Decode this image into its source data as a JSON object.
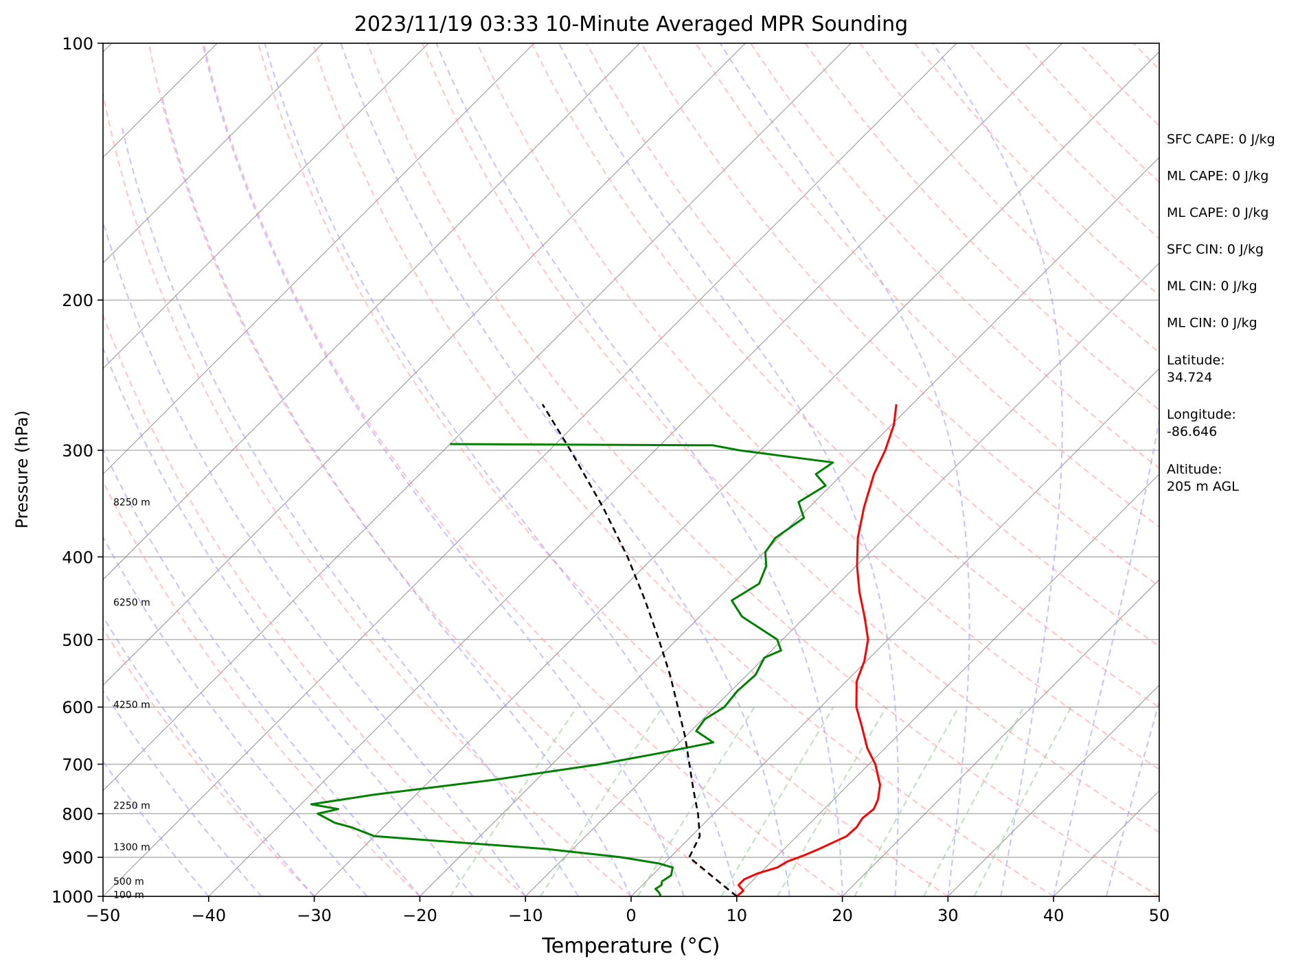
{
  "chart_data": {
    "type": "line",
    "title": "2023/11/19 03:33 10-Minute Averaged MPR Sounding",
    "xlabel": "Temperature (°C)",
    "ylabel": "Pressure (hPa)",
    "xlim": [
      -50,
      50
    ],
    "ylim": [
      1000,
      100
    ],
    "y_scale": "log",
    "skew": true,
    "x_ticks": [
      "−50",
      "−40",
      "−30",
      "−20",
      "−10",
      "0",
      "10",
      "20",
      "30",
      "40",
      "50"
    ],
    "x_tick_values": [
      -50,
      -40,
      -30,
      -20,
      -10,
      0,
      10,
      20,
      30,
      40,
      50
    ],
    "y_ticks": [
      "100",
      "200",
      "300",
      "400",
      "500",
      "600",
      "700",
      "800",
      "900",
      "1000"
    ],
    "y_tick_values": [
      100,
      200,
      300,
      400,
      500,
      600,
      700,
      800,
      900,
      1000
    ],
    "grid": true,
    "colors": {
      "temperature": "#ff0000",
      "dewpoint": "#008000",
      "parcel": "#000000",
      "dry_adiabats": "#ff9999",
      "moist_adiabats": "#9999ff",
      "mixing_ratio": "#99cc99",
      "isotherms": "#808080"
    },
    "height_labels": [
      {
        "text": "8250 m",
        "p": 345
      },
      {
        "text": "6250 m",
        "p": 452
      },
      {
        "text": "4250 m",
        "p": 596
      },
      {
        "text": "2250 m",
        "p": 782
      },
      {
        "text": "1300 m",
        "p": 875
      },
      {
        "text": "500 m",
        "p": 960
      },
      {
        "text": "100 m",
        "p": 995
      }
    ],
    "series": [
      {
        "key": "temperature",
        "points": [
          [
            1000,
            10.0
          ],
          [
            985,
            10.1
          ],
          [
            970,
            9.1
          ],
          [
            955,
            9.1
          ],
          [
            940,
            9.8
          ],
          [
            925,
            11.1
          ],
          [
            910,
            11.5
          ],
          [
            895,
            12.5
          ],
          [
            880,
            13.3
          ],
          [
            865,
            14.0
          ],
          [
            850,
            14.7
          ],
          [
            830,
            14.8
          ],
          [
            810,
            14.5
          ],
          [
            790,
            14.7
          ],
          [
            770,
            14.2
          ],
          [
            740,
            13.0
          ],
          [
            700,
            10.6
          ],
          [
            670,
            8.3
          ],
          [
            630,
            5.6
          ],
          [
            600,
            3.4
          ],
          [
            560,
            1.0
          ],
          [
            530,
            -0.2
          ],
          [
            500,
            -1.9
          ],
          [
            470,
            -4.4
          ],
          [
            440,
            -7.2
          ],
          [
            410,
            -9.9
          ],
          [
            380,
            -12.5
          ],
          [
            350,
            -14.8
          ],
          [
            320,
            -17.0
          ],
          [
            300,
            -18.2
          ],
          [
            280,
            -19.8
          ],
          [
            265,
            -21.5
          ]
        ]
      },
      {
        "key": "dewpoint",
        "points": [
          [
            1000,
            2.8
          ],
          [
            990,
            2.3
          ],
          [
            980,
            1.6
          ],
          [
            970,
            1.8
          ],
          [
            960,
            1.5
          ],
          [
            945,
            1.8
          ],
          [
            925,
            1.2
          ],
          [
            915,
            -0.5
          ],
          [
            900,
            -4.6
          ],
          [
            880,
            -12.5
          ],
          [
            850,
            -30.0
          ],
          [
            830,
            -33.0
          ],
          [
            820,
            -35.0
          ],
          [
            800,
            -37.5
          ],
          [
            790,
            -36.0
          ],
          [
            780,
            -39.0
          ],
          [
            760,
            -34.0
          ],
          [
            730,
            -24.0
          ],
          [
            700,
            -15.5
          ],
          [
            680,
            -11.0
          ],
          [
            660,
            -6.8
          ],
          [
            640,
            -9.5
          ],
          [
            620,
            -9.8
          ],
          [
            600,
            -9.1
          ],
          [
            575,
            -9.4
          ],
          [
            550,
            -9.2
          ],
          [
            525,
            -10.0
          ],
          [
            515,
            -9.1
          ],
          [
            500,
            -10.5
          ],
          [
            470,
            -16.0
          ],
          [
            450,
            -18.5
          ],
          [
            430,
            -17.5
          ],
          [
            410,
            -18.5
          ],
          [
            395,
            -19.9
          ],
          [
            380,
            -20.3
          ],
          [
            360,
            -19.5
          ],
          [
            345,
            -21.5
          ],
          [
            330,
            -20.5
          ],
          [
            320,
            -22.5
          ],
          [
            310,
            -22.0
          ],
          [
            300,
            -32.0
          ],
          [
            296,
            -35.0
          ],
          [
            295,
            -60.0
          ]
        ]
      },
      {
        "key": "parcel",
        "points": [
          [
            1000,
            10.0
          ],
          [
            950,
            6.0
          ],
          [
            900,
            1.8
          ],
          [
            850,
            0.8
          ],
          [
            800,
            -1.5
          ],
          [
            750,
            -4.2
          ],
          [
            700,
            -7.0
          ],
          [
            650,
            -10.0
          ],
          [
            600,
            -13.5
          ],
          [
            550,
            -17.3
          ],
          [
            500,
            -21.7
          ],
          [
            450,
            -26.7
          ],
          [
            400,
            -32.5
          ],
          [
            350,
            -39.5
          ],
          [
            300,
            -48.0
          ],
          [
            265,
            -55.0
          ]
        ]
      }
    ],
    "stats": [
      {
        "text": "SFC CAPE: 0 J/kg"
      },
      {
        "text": "ML CAPE: 0 J/kg"
      },
      {
        "text": "ML CAPE: 0 J/kg"
      },
      {
        "text": "SFC CIN: 0 J/kg"
      },
      {
        "text": "ML CIN: 0 J/kg"
      },
      {
        "text": "ML CIN: 0 J/kg"
      }
    ],
    "station": {
      "lat_label": "Latitude:",
      "lat": "34.724",
      "lon_label": "Longitude:",
      "lon": "-86.646",
      "alt_label": "Altitude:",
      "alt": "205 m AGL"
    }
  }
}
